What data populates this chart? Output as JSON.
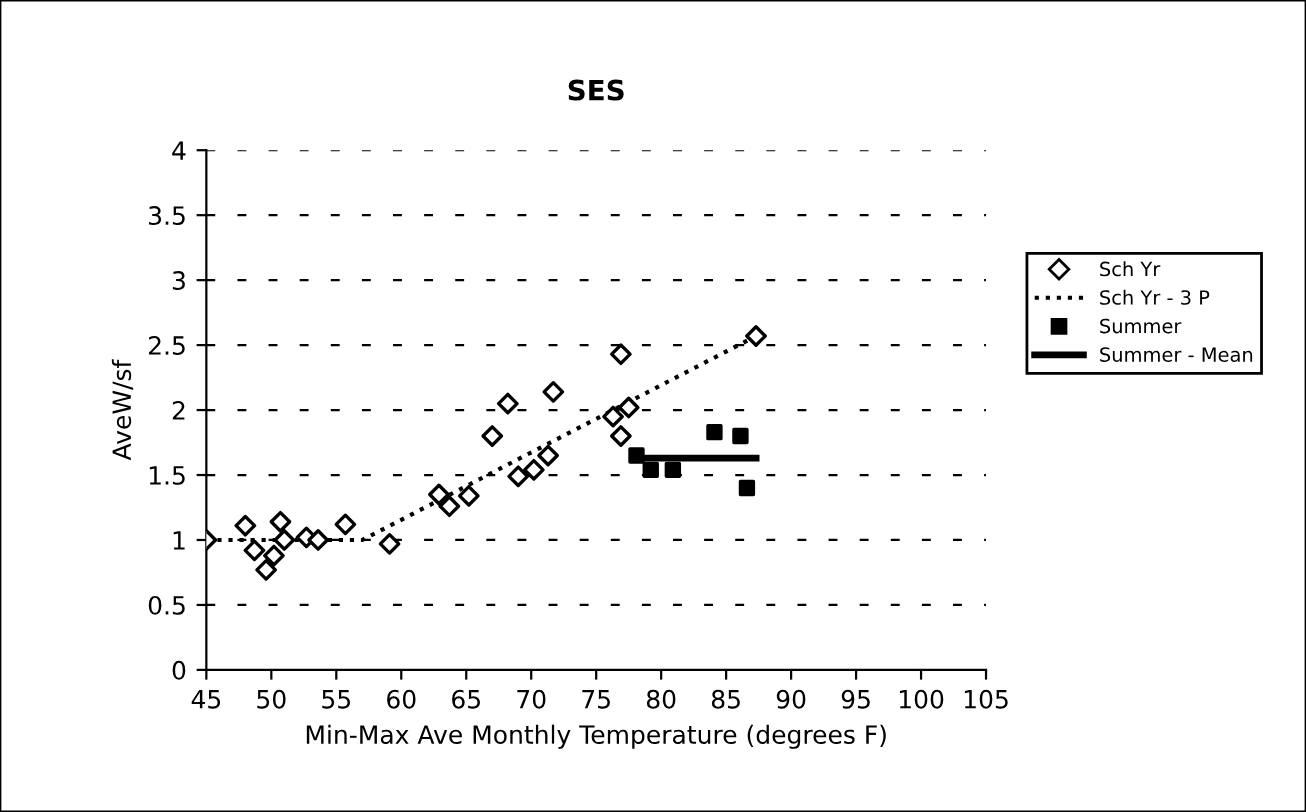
{
  "chart_data": {
    "type": "scatter",
    "title": "SES",
    "xlabel": "Min-Max Ave Monthly Temperature (degrees F)",
    "ylabel": "AveW/sf",
    "xlim": [
      45,
      105
    ],
    "xticks": [
      45,
      50,
      55,
      60,
      65,
      70,
      75,
      80,
      85,
      90,
      95,
      100,
      105
    ],
    "ylim": [
      0,
      4
    ],
    "yticks": [
      0,
      0.5,
      1,
      1.5,
      2,
      2.5,
      3,
      3.5,
      4
    ],
    "grid": "y",
    "legend": "right",
    "series": [
      {
        "name": "Sch Yr",
        "marker": "diamond",
        "color": "#000000",
        "x": [
          45.0,
          48.0,
          48.7,
          49.6,
          50.2,
          50.7,
          51.0,
          52.7,
          53.6,
          55.7,
          59.1,
          62.9,
          63.7,
          65.2,
          67.0,
          68.2,
          69.0,
          70.2,
          71.3,
          71.7,
          76.3,
          76.9,
          77.5,
          76.9,
          87.3
        ],
        "values": [
          1.0,
          1.11,
          0.92,
          0.77,
          0.88,
          1.14,
          1.0,
          1.02,
          1.0,
          1.12,
          0.97,
          1.35,
          1.26,
          1.34,
          1.8,
          2.05,
          1.49,
          1.54,
          1.65,
          2.14,
          1.95,
          2.43,
          2.02,
          1.8,
          2.57
        ]
      },
      {
        "name": "Sch Yr - 3 P",
        "type": "line",
        "line_style": "dotted",
        "color": "#000000",
        "x": [
          45,
          57,
          87.5
        ],
        "values": [
          1.0,
          1.0,
          2.58
        ]
      },
      {
        "name": "Summer",
        "type": "scatter",
        "marker": "square",
        "color": "#000000",
        "x": [
          78.1,
          79.2,
          80.9,
          84.1,
          86.1,
          86.6
        ],
        "values": [
          1.65,
          1.54,
          1.54,
          1.83,
          1.8,
          1.4
        ]
      },
      {
        "name": "Summer - Mean",
        "type": "line",
        "line_style": "solid",
        "color": "#000000",
        "x": [
          78.3,
          87.3
        ],
        "values": [
          1.63,
          1.63
        ]
      }
    ]
  }
}
